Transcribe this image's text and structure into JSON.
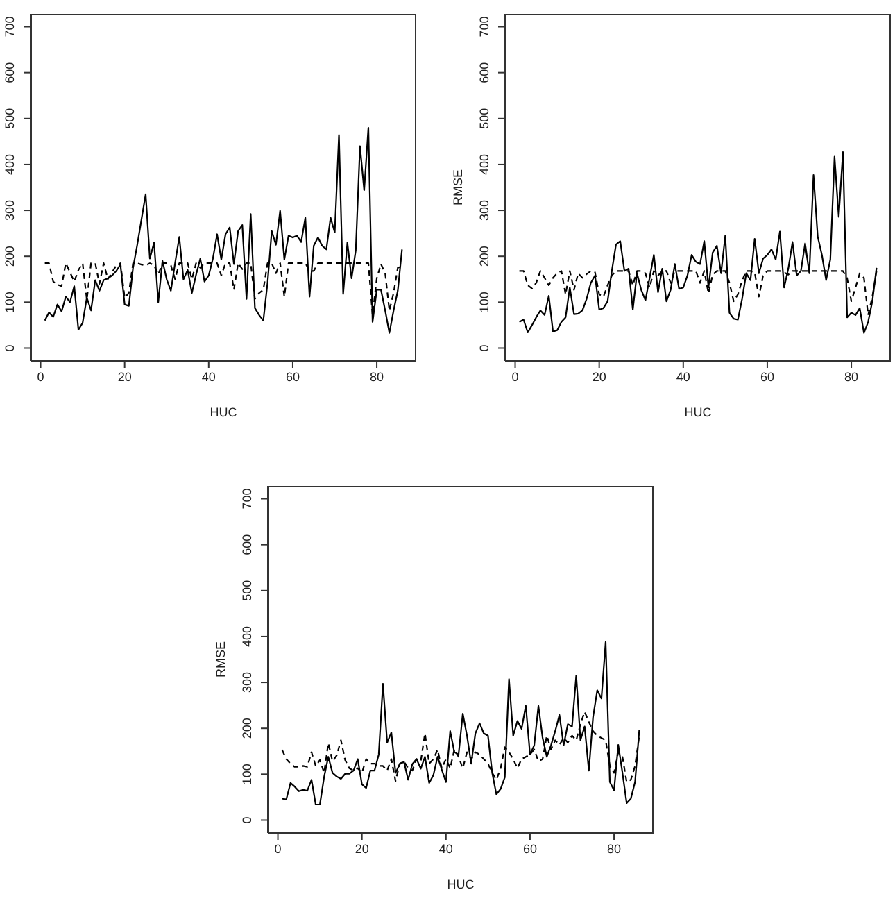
{
  "chart_data": [
    {
      "type": "line",
      "x": [
        1,
        2,
        3,
        4,
        5,
        6,
        7,
        8,
        9,
        10,
        11,
        12,
        13,
        14,
        15,
        16,
        17,
        18,
        19,
        20,
        21,
        22,
        23,
        24,
        25,
        26,
        27,
        28,
        29,
        30,
        31,
        32,
        33,
        34,
        35,
        36,
        37,
        38,
        39,
        40,
        41,
        42,
        43,
        44,
        45,
        46,
        47,
        48,
        49,
        50,
        51,
        52,
        53,
        54,
        55,
        56,
        57,
        58,
        59,
        60,
        61,
        62,
        63,
        64,
        65,
        66,
        67,
        68,
        69,
        70,
        71,
        72,
        73,
        74,
        75,
        76,
        77,
        78,
        79,
        80,
        81,
        82,
        83,
        84,
        85,
        86
      ],
      "series": [
        {
          "color": "#000000",
          "line_style": "solid",
          "values": [
            60,
            78,
            68,
            95,
            80,
            112,
            100,
            135,
            40,
            55,
            110,
            82,
            148,
            125,
            148,
            152,
            158,
            168,
            182,
            95,
            92,
            175,
            225,
            280,
            335,
            195,
            230,
            100,
            190,
            150,
            125,
            185,
            242,
            150,
            170,
            120,
            160,
            195,
            145,
            158,
            195,
            248,
            193,
            248,
            263,
            183,
            255,
            268,
            107,
            292,
            87,
            72,
            60,
            142,
            255,
            225,
            299,
            193,
            245,
            241,
            245,
            231,
            284,
            112,
            223,
            241,
            223,
            215,
            284,
            252,
            464,
            118,
            230,
            152,
            213,
            440,
            344,
            480,
            57,
            127,
            127,
            82,
            33,
            82,
            125,
            215
          ]
        },
        {
          "color": "#000000",
          "line_style": "dashed",
          "values": [
            185,
            185,
            145,
            138,
            135,
            185,
            165,
            145,
            170,
            185,
            105,
            185,
            185,
            140,
            185,
            150,
            165,
            180,
            185,
            110,
            120,
            185,
            185,
            182,
            180,
            185,
            180,
            160,
            185,
            185,
            180,
            150,
            185,
            185,
            185,
            150,
            185,
            175,
            185,
            185,
            185,
            185,
            158,
            185,
            185,
            127,
            185,
            172,
            185,
            185,
            107,
            120,
            127,
            185,
            185,
            163,
            185,
            112,
            185,
            185,
            185,
            185,
            185,
            168,
            168,
            185,
            185,
            185,
            185,
            185,
            185,
            185,
            185,
            185,
            185,
            185,
            185,
            185,
            72,
            152,
            183,
            163,
            82,
            120,
            175,
            178
          ]
        }
      ],
      "xlim": [
        -2.4,
        89.4
      ],
      "ylim": [
        -28,
        728
      ],
      "xticks": [
        0,
        20,
        40,
        60,
        80
      ],
      "yticks": [
        0,
        100,
        200,
        300,
        400,
        500,
        600,
        700
      ],
      "xlabel": "HUC"
    },
    {
      "type": "line",
      "x": [
        1,
        2,
        3,
        4,
        5,
        6,
        7,
        8,
        9,
        10,
        11,
        12,
        13,
        14,
        15,
        16,
        17,
        18,
        19,
        20,
        21,
        22,
        23,
        24,
        25,
        26,
        27,
        28,
        29,
        30,
        31,
        32,
        33,
        34,
        35,
        36,
        37,
        38,
        39,
        40,
        41,
        42,
        43,
        44,
        45,
        46,
        47,
        48,
        49,
        50,
        51,
        52,
        53,
        54,
        55,
        56,
        57,
        58,
        59,
        60,
        61,
        62,
        63,
        64,
        65,
        66,
        67,
        68,
        69,
        70,
        71,
        72,
        73,
        74,
        75,
        76,
        77,
        78,
        79,
        80,
        81,
        82,
        83,
        84,
        85,
        86
      ],
      "series": [
        {
          "color": "#000000",
          "line_style": "solid",
          "values": [
            57,
            62,
            34,
            50,
            67,
            82,
            72,
            114,
            36,
            39,
            57,
            67,
            132,
            74,
            75,
            82,
            107,
            142,
            158,
            84,
            87,
            102,
            168,
            226,
            233,
            168,
            173,
            84,
            163,
            127,
            104,
            153,
            203,
            122,
            173,
            102,
            127,
            183,
            129,
            132,
            158,
            203,
            188,
            183,
            233,
            132,
            208,
            223,
            163,
            245,
            77,
            64,
            62,
            107,
            163,
            148,
            238,
            163,
            195,
            203,
            215,
            193,
            254,
            132,
            173,
            231,
            158,
            168,
            228,
            163,
            377,
            243,
            203,
            148,
            193,
            417,
            286,
            427,
            67,
            77,
            72,
            87,
            33,
            57,
            102,
            175
          ]
        },
        {
          "color": "#000000",
          "line_style": "dashed",
          "values": [
            168,
            168,
            137,
            130,
            142,
            168,
            153,
            137,
            153,
            163,
            168,
            117,
            168,
            127,
            163,
            153,
            161,
            168,
            165,
            117,
            112,
            137,
            158,
            168,
            168,
            168,
            168,
            137,
            168,
            168,
            163,
            132,
            168,
            158,
            168,
            168,
            142,
            168,
            168,
            168,
            168,
            168,
            168,
            142,
            168,
            119,
            160,
            168,
            168,
            168,
            142,
            102,
            117,
            147,
            168,
            168,
            165,
            112,
            158,
            168,
            168,
            168,
            168,
            165,
            160,
            168,
            168,
            168,
            168,
            168,
            168,
            168,
            168,
            168,
            168,
            168,
            168,
            168,
            152,
            102,
            132,
            163,
            153,
            72,
            112,
            168
          ]
        }
      ],
      "xlim": [
        -2.4,
        89.4
      ],
      "ylim": [
        -28,
        728
      ],
      "xticks": [
        0,
        20,
        40,
        60,
        80
      ],
      "yticks": [
        0,
        100,
        200,
        300,
        400,
        500,
        600,
        700
      ],
      "xlabel": "HUC",
      "ylabel": "RMSE"
    },
    {
      "type": "line",
      "x": [
        1,
        2,
        3,
        4,
        5,
        6,
        7,
        8,
        9,
        10,
        11,
        12,
        13,
        14,
        15,
        16,
        17,
        18,
        19,
        20,
        21,
        22,
        23,
        24,
        25,
        26,
        27,
        28,
        29,
        30,
        31,
        32,
        33,
        34,
        35,
        36,
        37,
        38,
        39,
        40,
        41,
        42,
        43,
        44,
        45,
        46,
        47,
        48,
        49,
        50,
        51,
        52,
        53,
        54,
        55,
        56,
        57,
        58,
        59,
        60,
        61,
        62,
        63,
        64,
        65,
        66,
        67,
        68,
        69,
        70,
        71,
        72,
        73,
        74,
        75,
        76,
        77,
        78,
        79,
        80,
        81,
        82,
        83,
        84,
        85,
        86
      ],
      "series": [
        {
          "color": "#000000",
          "line_style": "solid",
          "values": [
            47,
            45,
            81,
            73,
            63,
            66,
            64,
            88,
            34,
            34,
            94,
            138,
            103,
            95,
            90,
            101,
            101,
            108,
            133,
            78,
            70,
            108,
            108,
            143,
            297,
            169,
            191,
            103,
            122,
            127,
            88,
            122,
            133,
            112,
            138,
            81,
            98,
            138,
            110,
            83,
            194,
            148,
            143,
            232,
            184,
            123,
            189,
            211,
            189,
            184,
            103,
            56,
            68,
            93,
            307,
            184,
            216,
            199,
            249,
            143,
            163,
            249,
            179,
            138,
            163,
            194,
            229,
            163,
            209,
            204,
            315,
            174,
            204,
            108,
            224,
            283,
            265,
            388,
            83,
            65,
            164,
            103,
            37,
            47,
            83,
            196
          ]
        },
        {
          "color": "#000000",
          "line_style": "dashed",
          "values": [
            153,
            133,
            123,
            116,
            116,
            118,
            116,
            148,
            118,
            131,
            103,
            168,
            128,
            141,
            174,
            131,
            113,
            108,
            113,
            103,
            133,
            123,
            123,
            118,
            118,
            108,
            133,
            85,
            123,
            128,
            113,
            108,
            133,
            128,
            189,
            123,
            133,
            153,
            113,
            133,
            113,
            154,
            138,
            113,
            148,
            133,
            148,
            143,
            133,
            123,
            103,
            88,
            113,
            159,
            148,
            133,
            113,
            133,
            138,
            143,
            154,
            128,
            133,
            184,
            154,
            174,
            164,
            179,
            169,
            184,
            174,
            209,
            236,
            214,
            194,
            184,
            179,
            174,
            118,
            103,
            148,
            138,
            83,
            88,
            118,
            184
          ]
        }
      ],
      "xlim": [
        -2.4,
        89.4
      ],
      "ylim": [
        -28,
        728
      ],
      "xticks": [
        0,
        20,
        40,
        60,
        80
      ],
      "yticks": [
        0,
        100,
        200,
        300,
        400,
        500,
        600,
        700
      ],
      "xlabel": "HUC",
      "ylabel": "RMSE"
    }
  ]
}
